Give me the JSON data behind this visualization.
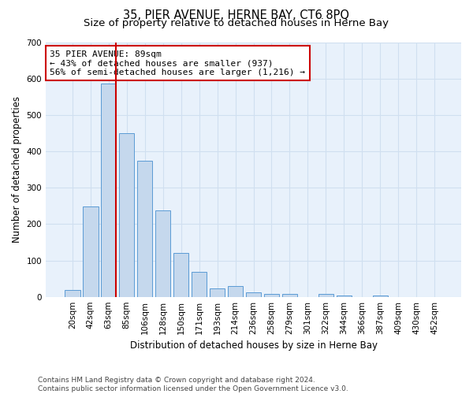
{
  "title": "35, PIER AVENUE, HERNE BAY, CT6 8PQ",
  "subtitle": "Size of property relative to detached houses in Herne Bay",
  "xlabel": "Distribution of detached houses by size in Herne Bay",
  "ylabel": "Number of detached properties",
  "categories": [
    "20sqm",
    "42sqm",
    "63sqm",
    "85sqm",
    "106sqm",
    "128sqm",
    "150sqm",
    "171sqm",
    "193sqm",
    "214sqm",
    "236sqm",
    "258sqm",
    "279sqm",
    "301sqm",
    "322sqm",
    "344sqm",
    "366sqm",
    "387sqm",
    "409sqm",
    "430sqm",
    "452sqm"
  ],
  "values": [
    18,
    248,
    588,
    450,
    375,
    238,
    120,
    68,
    23,
    30,
    13,
    8,
    8,
    0,
    7,
    4,
    0,
    3,
    0,
    0,
    0
  ],
  "bar_color": "#c5d8ed",
  "bar_edge_color": "#5b9bd5",
  "grid_color": "#d0dff0",
  "annotation_text": "35 PIER AVENUE: 89sqm\n← 43% of detached houses are smaller (937)\n56% of semi-detached houses are larger (1,216) →",
  "annotation_box_color": "#ffffff",
  "annotation_box_edge_color": "#cc0000",
  "vline_color": "#cc0000",
  "ylim": [
    0,
    700
  ],
  "yticks": [
    0,
    100,
    200,
    300,
    400,
    500,
    600,
    700
  ],
  "footnote": "Contains HM Land Registry data © Crown copyright and database right 2024.\nContains public sector information licensed under the Open Government Licence v3.0.",
  "bg_color": "#e8f1fb",
  "fig_bg_color": "#ffffff",
  "title_fontsize": 10.5,
  "subtitle_fontsize": 9.5,
  "xlabel_fontsize": 8.5,
  "ylabel_fontsize": 8.5,
  "tick_fontsize": 7.5,
  "annotation_fontsize": 8,
  "footnote_fontsize": 6.5,
  "vline_x_index": 2,
  "vline_right_edge": true
}
